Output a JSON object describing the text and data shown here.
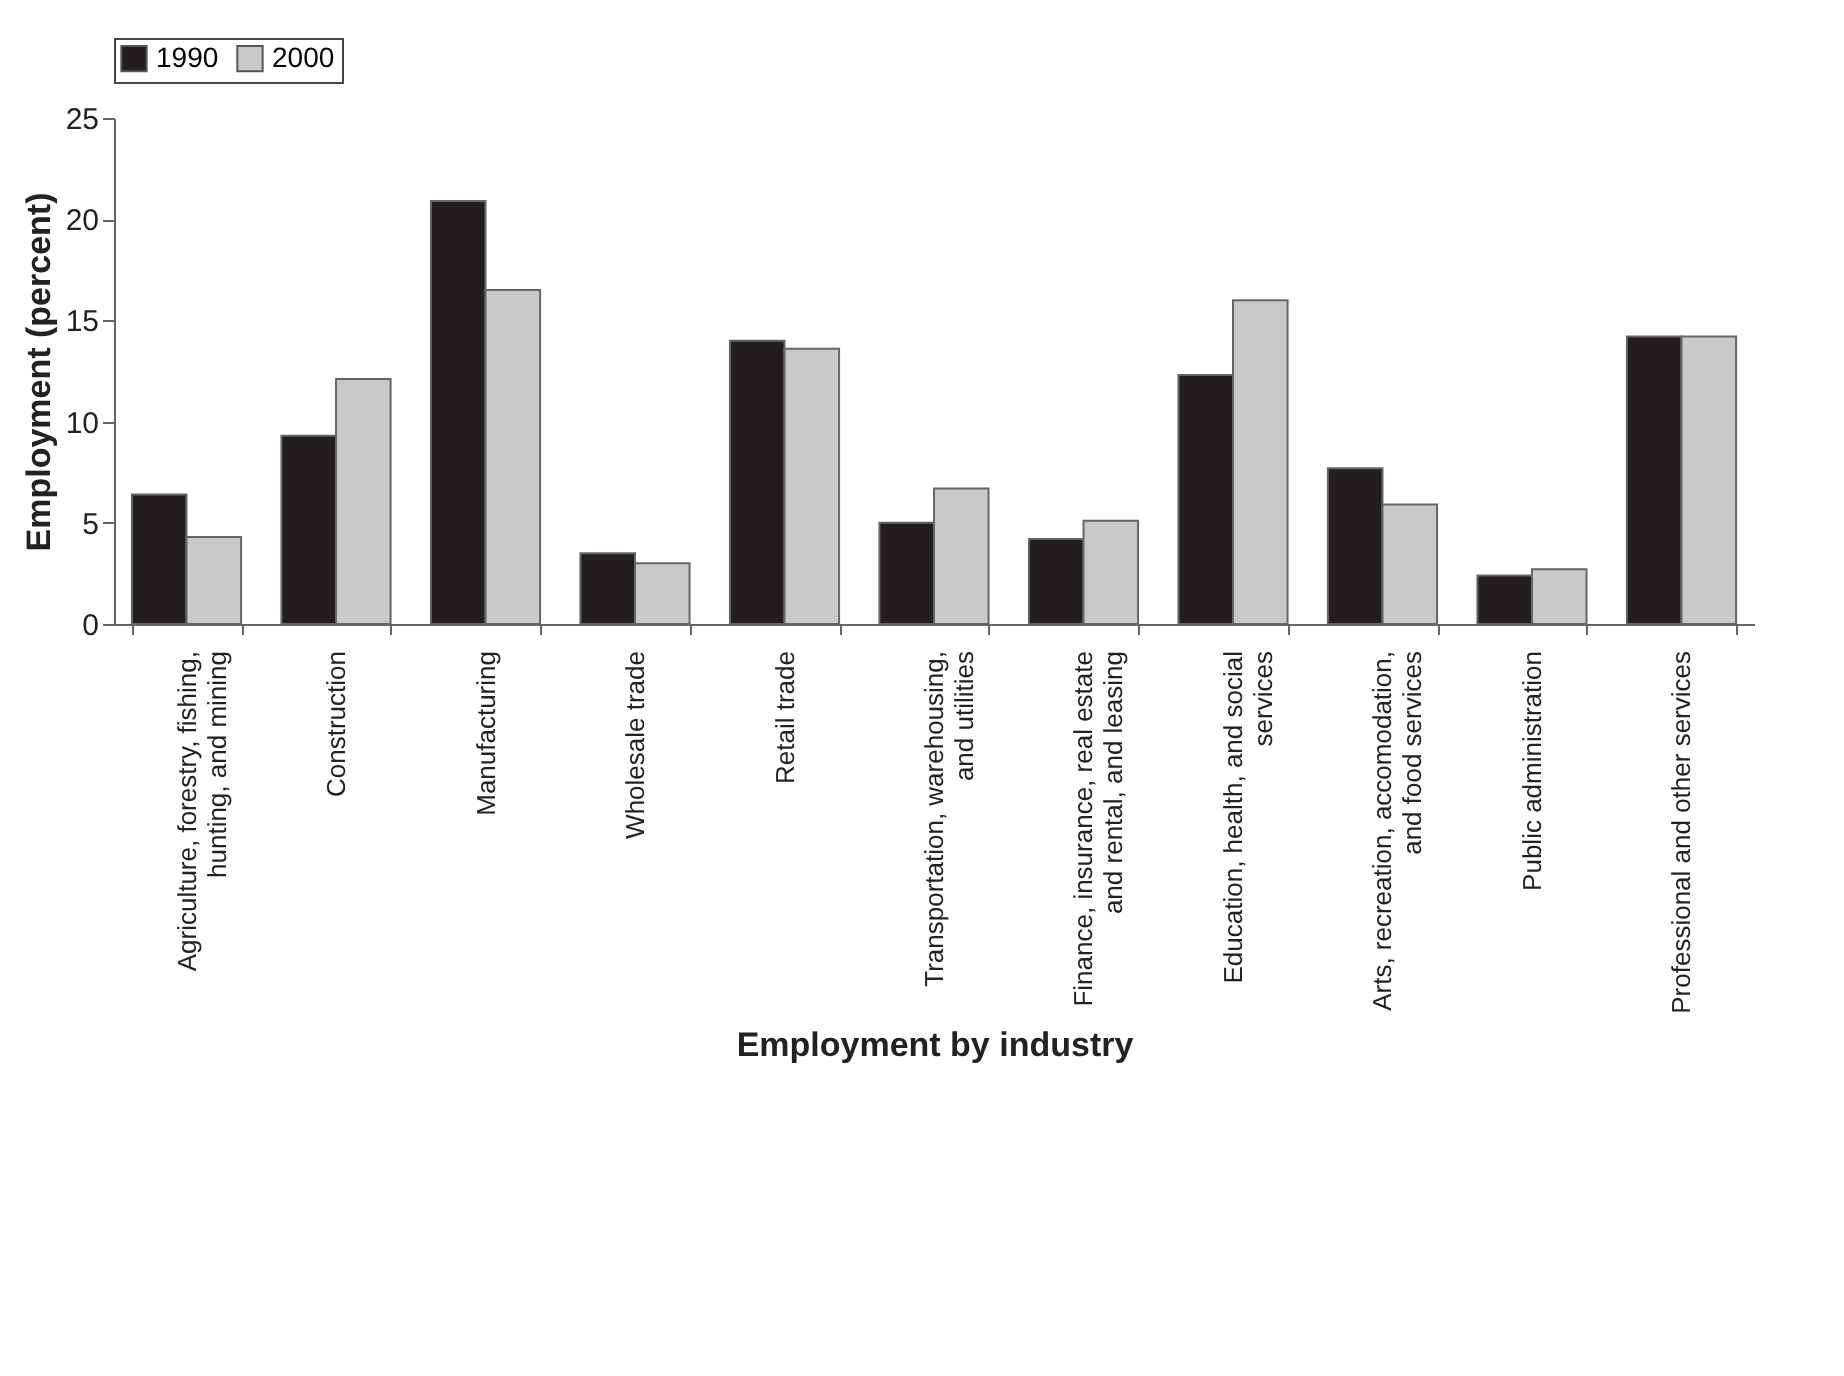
{
  "chart_data": {
    "type": "bar",
    "xlabel": "Employment by industry",
    "ylabel": "Employment (percent)",
    "categories": [
      "Agriculture, forestry, fishing, hunting, and mining",
      "Construction",
      "Manufacturing",
      "Wholesale trade",
      "Retail trade",
      "Transportation, warehousing, and utilities",
      "Finance, insurance, real estate and rental, and leasing",
      "Education, health, and social services",
      "Arts, recreation, accomodation, and food services",
      "Public administration",
      "Professional and other services"
    ],
    "series": [
      {
        "name": "1990",
        "color": "#231f20",
        "values": [
          6.4,
          9.3,
          20.9,
          3.5,
          14.0,
          5.0,
          4.2,
          12.3,
          7.7,
          2.4,
          14.2
        ]
      },
      {
        "name": "2000",
        "color": "#c8c9cb",
        "values": [
          4.3,
          12.1,
          16.5,
          3.0,
          13.6,
          6.7,
          5.1,
          16.0,
          5.9,
          2.7,
          14.2
        ]
      }
    ],
    "ylim": [
      0,
      25
    ],
    "yticks": [
      0,
      5,
      10,
      15,
      20,
      25
    ],
    "grid": false,
    "legend": "top"
  }
}
